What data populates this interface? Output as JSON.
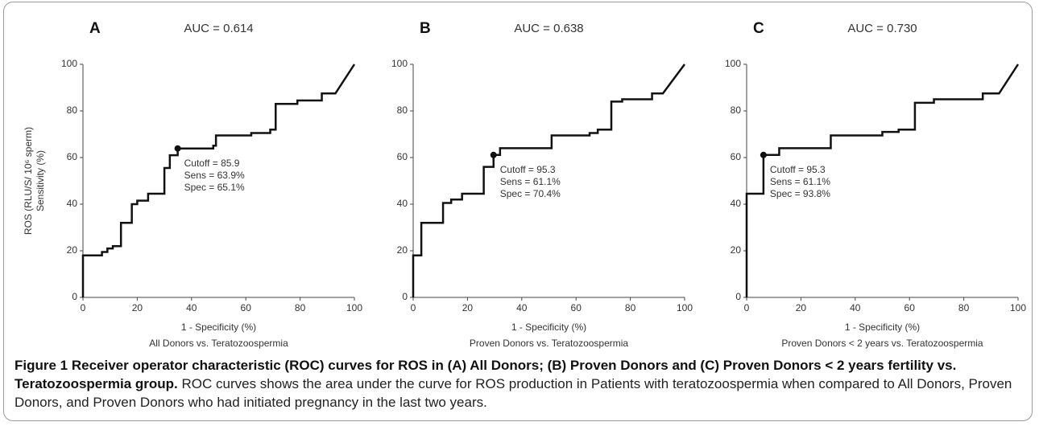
{
  "chart_data": [
    {
      "type": "line",
      "panel_label": "A",
      "title": "AUC = 0.614",
      "xlabel": "1 - Specificity (%)",
      "subtitle": "All Donors vs. Teratozoospermia",
      "ylabel": [
        "ROS (RLU/S/ 10⁶ sperm)",
        "Sensitivity (%)"
      ],
      "x": [
        0,
        0,
        7,
        7,
        9,
        9,
        11,
        11,
        14,
        14,
        18,
        18,
        20,
        20,
        24,
        24,
        30,
        30,
        32,
        32,
        34.9,
        34.9,
        48,
        48,
        49,
        49,
        62,
        62,
        69,
        69,
        71,
        71,
        79,
        79,
        88,
        88,
        93,
        100
      ],
      "values": [
        0,
        18,
        18,
        19.5,
        19.5,
        21,
        21,
        22,
        22,
        32,
        32,
        40,
        40,
        41.5,
        41.5,
        44.5,
        44.5,
        55.5,
        55.5,
        61,
        61,
        63.9,
        63.9,
        65.1,
        65.1,
        69.5,
        69.5,
        70.5,
        70.5,
        72,
        72,
        83,
        83,
        84.5,
        84.5,
        87.5,
        87.5,
        100
      ],
      "color": "#111111",
      "point": {
        "x": 34.9,
        "y": 63.9
      },
      "annotation": [
        "Cutoff = 85.9",
        "Sens = 63.9%",
        "Spec = 65.1%"
      ],
      "xlim": [
        0,
        100
      ],
      "ylim": [
        0,
        100
      ],
      "xticks": [
        0,
        20,
        40,
        60,
        80,
        100
      ],
      "yticks": [
        0,
        20,
        40,
        60,
        80,
        100
      ]
    },
    {
      "type": "line",
      "panel_label": "B",
      "title": "AUC = 0.638",
      "xlabel": "1 - Specificity (%)",
      "subtitle": "Proven Donors vs. Teratozoospermia",
      "x": [
        0,
        0,
        3,
        3,
        11,
        11,
        14,
        14,
        18,
        18,
        26,
        26,
        29.6,
        29.6,
        32,
        32,
        51,
        51,
        65,
        65,
        68,
        68,
        73,
        73,
        77,
        77,
        88,
        88,
        92,
        100
      ],
      "values": [
        0,
        18,
        18,
        32,
        32,
        40.5,
        40.5,
        42,
        42,
        44.5,
        44.5,
        56,
        56,
        61.1,
        61.1,
        64,
        64,
        69.5,
        69.5,
        70.5,
        70.5,
        72,
        72,
        84,
        84,
        85,
        85,
        87.5,
        87.5,
        100
      ],
      "color": "#111111",
      "point": {
        "x": 29.6,
        "y": 61.1
      },
      "annotation": [
        "Cutoff = 95.3",
        "Sens = 61.1%",
        "Spec = 70.4%"
      ],
      "xlim": [
        0,
        100
      ],
      "ylim": [
        0,
        100
      ],
      "xticks": [
        0,
        20,
        40,
        60,
        80,
        100
      ],
      "yticks": [
        0,
        20,
        40,
        60,
        80,
        100
      ]
    },
    {
      "type": "line",
      "panel_label": "C",
      "title": "AUC = 0.730",
      "xlabel": "1 - Specificity (%)",
      "subtitle": "Proven Donors < 2 years vs. Teratozoospermia",
      "x": [
        0,
        0,
        6.2,
        6.2,
        12,
        12,
        31,
        31,
        50,
        50,
        56,
        56,
        62,
        62,
        69,
        69,
        87,
        87,
        93,
        100
      ],
      "values": [
        0,
        44.5,
        44.5,
        61.1,
        61.1,
        64,
        64,
        69.5,
        69.5,
        71,
        71,
        72,
        72,
        83.5,
        83.5,
        85,
        85,
        87.5,
        87.5,
        100
      ],
      "color": "#111111",
      "point": {
        "x": 6.2,
        "y": 61.1
      },
      "annotation": [
        "Cutoff = 95.3",
        "Sens = 61.1%",
        "Spec = 93.8%"
      ],
      "xlim": [
        0,
        100
      ],
      "ylim": [
        0,
        100
      ],
      "xticks": [
        0,
        20,
        40,
        60,
        80,
        100
      ],
      "yticks": [
        0,
        20,
        40,
        60,
        80,
        100
      ]
    }
  ],
  "caption": {
    "title": "Figure 1 Receiver operator characteristic (ROC) curves for ROS in (A) All Donors; (B) Proven Donors and (C) Proven Donors < 2 years fertility vs. Teratozoospermia group.",
    "text": "ROC curves shows the area under the curve for ROS production in Patients with teratozoospermia when compared to All Donors, Proven Donors, and Proven Donors who had initiated pregnancy in the last two years."
  }
}
